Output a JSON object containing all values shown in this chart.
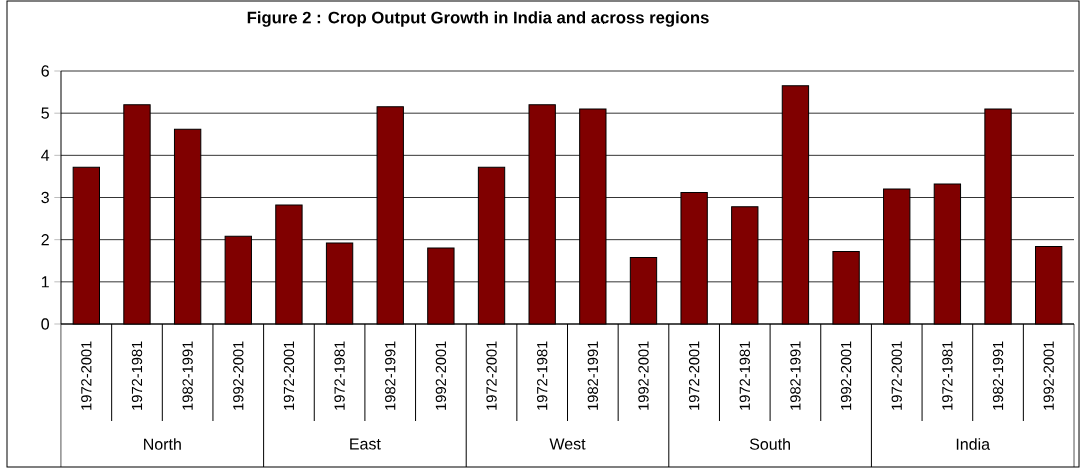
{
  "chart_data": {
    "type": "bar",
    "title": "Figure 2 : Crop Output Growth in India and across regions",
    "categories": [
      "1972-2001",
      "1972-1981",
      "1982-1991",
      "1992-2001",
      "1972-2001",
      "1972-1981",
      "1982-1991",
      "1992-2001",
      "1972-2001",
      "1972-1981",
      "1982-1991",
      "1992-2001",
      "1972-2001",
      "1972-1981",
      "1982-1991",
      "1992-2001",
      "1972-2001",
      "1972-1981",
      "1982-1991",
      "1992-2001"
    ],
    "values": [
      3.72,
      5.2,
      4.62,
      2.08,
      2.82,
      1.92,
      5.15,
      1.8,
      3.72,
      5.2,
      5.1,
      1.58,
      3.12,
      2.78,
      5.65,
      1.72,
      3.2,
      3.32,
      5.1,
      1.84
    ],
    "color": "#800000",
    "ylim": [
      0,
      6
    ],
    "yticks": [
      0,
      1,
      2,
      3,
      4,
      5,
      6
    ],
    "grid": "y",
    "annotations": [
      "North",
      "East",
      "West",
      "South",
      "India"
    ]
  }
}
